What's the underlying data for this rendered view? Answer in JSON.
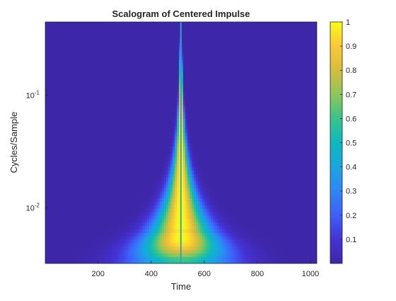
{
  "chart_data": {
    "type": "heatmap",
    "title": "Scalogram of Centered Impulse",
    "xlabel": "Time",
    "ylabel": "Cycles/Sample",
    "xlim": [
      1,
      1024
    ],
    "ylim": [
      0.0032,
      0.45
    ],
    "yscale": "log",
    "x_ticks": [
      200,
      400,
      600,
      800,
      1000
    ],
    "y_ticks": [
      {
        "value": 0.1,
        "base": "10",
        "exp": "-1"
      },
      {
        "value": 0.01,
        "base": "10",
        "exp": "-2"
      }
    ],
    "impulse_time": 512,
    "colorbar": {
      "colormap": "parula",
      "range": [
        0,
        1
      ],
      "ticks": [
        "0.1",
        "0.2",
        "0.3",
        "0.4",
        "0.5",
        "0.6",
        "0.7",
        "0.8",
        "0.9",
        "1"
      ]
    },
    "grid": false
  }
}
